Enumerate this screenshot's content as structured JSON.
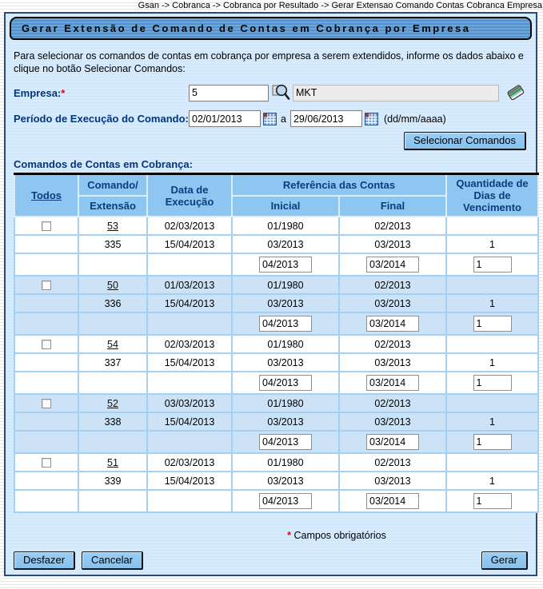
{
  "breadcrumb": "Gsan -> Cobranca -> Cobranca por Resultado -> Gerar Extensao Comando Contas Cobranca Empresa",
  "title": "Gerar Extensão de Comando de Contas em Cobrança por Empresa",
  "intro": "Para selecionar os comandos de contas em cobrança por empresa a serem extendidos, informe os dados abaixo e clique no botão Selecionar Comandos:",
  "form": {
    "empresa_label": "Empresa:",
    "required_mark": "*",
    "empresa_code": "5",
    "empresa_name": "MKT",
    "periodo_label": "Período de Execução do Comando:",
    "periodo_inicio": "02/01/2013",
    "periodo_conjuncao": "a",
    "periodo_fim": "29/06/2013",
    "date_format_hint": "(dd/mm/aaaa)",
    "selecionar_button": "Selecionar Comandos"
  },
  "table": {
    "section_label": "Comandos de Contas em Cobrança:",
    "headers": {
      "todos": "Todos",
      "comando": "Comando/",
      "extensao": "Extensão",
      "data_execucao": "Data de Execução",
      "referencia": "Referência das Contas",
      "inicial": "Inicial",
      "final": "Final",
      "quantidade": "Quantidade de Dias de Vencimento"
    },
    "groups": [
      {
        "comando": "53",
        "data_execucao": "02/03/2013",
        "ref_inicial": "01/1980",
        "ref_final": "02/2013",
        "dias": "",
        "extensao": "335",
        "ext_data_execucao": "15/04/2013",
        "ext_ref_inicial": "03/2013",
        "ext_ref_final": "03/2013",
        "ext_dias": "1",
        "novo_ref_inicial": "04/2013",
        "novo_ref_final": "03/2014",
        "novo_dias": "1"
      },
      {
        "comando": "50",
        "data_execucao": "01/03/2013",
        "ref_inicial": "01/1980",
        "ref_final": "02/2013",
        "dias": "",
        "extensao": "336",
        "ext_data_execucao": "15/04/2013",
        "ext_ref_inicial": "03/2013",
        "ext_ref_final": "03/2013",
        "ext_dias": "1",
        "novo_ref_inicial": "04/2013",
        "novo_ref_final": "03/2014",
        "novo_dias": "1"
      },
      {
        "comando": "54",
        "data_execucao": "02/03/2013",
        "ref_inicial": "01/1980",
        "ref_final": "02/2013",
        "dias": "",
        "extensao": "337",
        "ext_data_execucao": "15/04/2013",
        "ext_ref_inicial": "03/2013",
        "ext_ref_final": "03/2013",
        "ext_dias": "1",
        "novo_ref_inicial": "04/2013",
        "novo_ref_final": "03/2014",
        "novo_dias": "1"
      },
      {
        "comando": "52",
        "data_execucao": "03/03/2013",
        "ref_inicial": "01/1980",
        "ref_final": "02/2013",
        "dias": "",
        "extensao": "338",
        "ext_data_execucao": "15/04/2013",
        "ext_ref_inicial": "03/2013",
        "ext_ref_final": "03/2013",
        "ext_dias": "1",
        "novo_ref_inicial": "04/2013",
        "novo_ref_final": "03/2014",
        "novo_dias": "1"
      },
      {
        "comando": "51",
        "data_execucao": "02/03/2013",
        "ref_inicial": "01/1980",
        "ref_final": "02/2013",
        "dias": "",
        "extensao": "339",
        "ext_data_execucao": "15/04/2013",
        "ext_ref_inicial": "03/2013",
        "ext_ref_final": "03/2013",
        "ext_dias": "1",
        "novo_ref_inicial": "04/2013",
        "novo_ref_final": "03/2014",
        "novo_dias": "1"
      }
    ]
  },
  "footer": {
    "required_mark": "*",
    "required_note": "Campos obrigatórios",
    "desfazer_button": "Desfazer",
    "cancelar_button": "Cancelar",
    "gerar_button": "Gerar"
  },
  "colors": {
    "accent_navy": "#02357e",
    "header_bg": "#8dc6f0",
    "alt_row_bg": "#cbe2f7",
    "panel_bg": "#d5e9fb",
    "required_red": "#e8000d"
  }
}
